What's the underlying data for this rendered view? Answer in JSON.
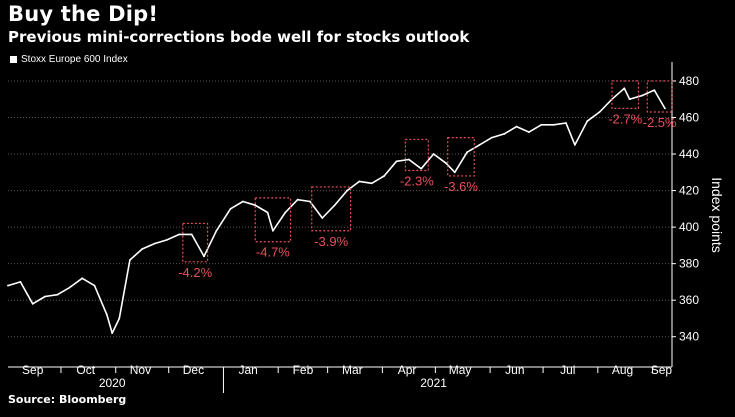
{
  "header": {
    "title": "Buy the Dip!",
    "subtitle": "Previous mini-corrections bode well for stocks outlook"
  },
  "footer": {
    "source": "Source: Bloomberg"
  },
  "colors": {
    "background": "#000000",
    "series": "#ffffff",
    "annotation": "#e8505b",
    "grid": "#555555"
  },
  "chart_data": {
    "type": "line",
    "title": "Buy the Dip!",
    "subtitle": "Previous mini-corrections bode well for stocks outlook",
    "ylabel": "Index points",
    "xlabel": "",
    "ylim": [
      330,
      486
    ],
    "yticks": [
      340,
      360,
      380,
      400,
      420,
      440,
      460,
      480
    ],
    "y_axis_position": "right",
    "grid": "horizontal dotted",
    "legend": "top-left",
    "xlim": [
      "2020-09-01",
      "2021-09-12"
    ],
    "month_ticks": [
      {
        "label": "Sep",
        "date": "2020-09-15"
      },
      {
        "label": "Oct",
        "date": "2020-10-15"
      },
      {
        "label": "Nov",
        "date": "2020-11-15"
      },
      {
        "label": "Dec",
        "date": "2020-12-15"
      },
      {
        "label": "Jan",
        "date": "2021-01-15"
      },
      {
        "label": "Feb",
        "date": "2021-02-15"
      },
      {
        "label": "Mar",
        "date": "2021-03-15"
      },
      {
        "label": "Apr",
        "date": "2021-04-15"
      },
      {
        "label": "May",
        "date": "2021-05-15"
      },
      {
        "label": "Jun",
        "date": "2021-06-15"
      },
      {
        "label": "Jul",
        "date": "2021-07-15"
      },
      {
        "label": "Aug",
        "date": "2021-08-15"
      },
      {
        "label": "Sep",
        "date": "2021-09-06"
      }
    ],
    "year_ticks": [
      {
        "label": "2020",
        "date": "2020-10-30"
      },
      {
        "label": "2021",
        "date": "2021-04-30"
      }
    ],
    "series": [
      {
        "name": "Stoxx Europe 600 Index",
        "x": [
          "2020-09-01",
          "2020-09-08",
          "2020-09-15",
          "2020-09-22",
          "2020-09-29",
          "2020-10-06",
          "2020-10-13",
          "2020-10-20",
          "2020-10-27",
          "2020-10-30",
          "2020-11-03",
          "2020-11-09",
          "2020-11-16",
          "2020-11-23",
          "2020-11-30",
          "2020-12-07",
          "2020-12-14",
          "2020-12-21",
          "2020-12-28",
          "2021-01-05",
          "2021-01-12",
          "2021-01-19",
          "2021-01-26",
          "2021-01-29",
          "2021-02-05",
          "2021-02-12",
          "2021-02-19",
          "2021-02-26",
          "2021-03-05",
          "2021-03-12",
          "2021-03-19",
          "2021-03-26",
          "2021-04-02",
          "2021-04-09",
          "2021-04-16",
          "2021-04-23",
          "2021-04-30",
          "2021-05-07",
          "2021-05-12",
          "2021-05-19",
          "2021-05-26",
          "2021-06-02",
          "2021-06-09",
          "2021-06-16",
          "2021-06-23",
          "2021-06-30",
          "2021-07-07",
          "2021-07-14",
          "2021-07-19",
          "2021-07-26",
          "2021-08-02",
          "2021-08-09",
          "2021-08-16",
          "2021-08-19",
          "2021-08-26",
          "2021-09-02",
          "2021-09-08"
        ],
        "values": [
          368,
          370,
          358,
          362,
          363,
          367,
          372,
          368,
          352,
          342,
          350,
          382,
          388,
          391,
          393,
          396,
          396,
          384,
          398,
          410,
          414,
          412,
          408,
          398,
          408,
          415,
          414,
          405,
          412,
          420,
          425,
          424,
          428,
          436,
          437,
          432,
          440,
          435,
          430,
          441,
          445,
          449,
          451,
          455,
          452,
          456,
          456,
          457,
          445,
          458,
          463,
          470,
          476,
          470,
          472,
          475,
          465
        ]
      }
    ],
    "annotations": [
      {
        "label": "-4.2%",
        "x0": "2020-12-09",
        "x1": "2020-12-23",
        "y0": 381,
        "y1": 402
      },
      {
        "label": "-4.7%",
        "x0": "2021-01-19",
        "x1": "2021-02-08",
        "y0": 392,
        "y1": 416
      },
      {
        "label": "-3.9%",
        "x0": "2021-02-20",
        "x1": "2021-03-14",
        "y0": 398,
        "y1": 422
      },
      {
        "label": "-2.3%",
        "x0": "2021-04-14",
        "x1": "2021-04-27",
        "y0": 431,
        "y1": 448
      },
      {
        "label": "-3.6%",
        "x0": "2021-05-08",
        "x1": "2021-05-23",
        "y0": 428,
        "y1": 449
      },
      {
        "label": "-2.7%",
        "x0": "2021-08-09",
        "x1": "2021-08-24",
        "y0": 465,
        "y1": 480
      },
      {
        "label": "-2.5%",
        "x0": "2021-08-29",
        "x1": "2021-09-12",
        "y0": 463,
        "y1": 480
      }
    ]
  }
}
